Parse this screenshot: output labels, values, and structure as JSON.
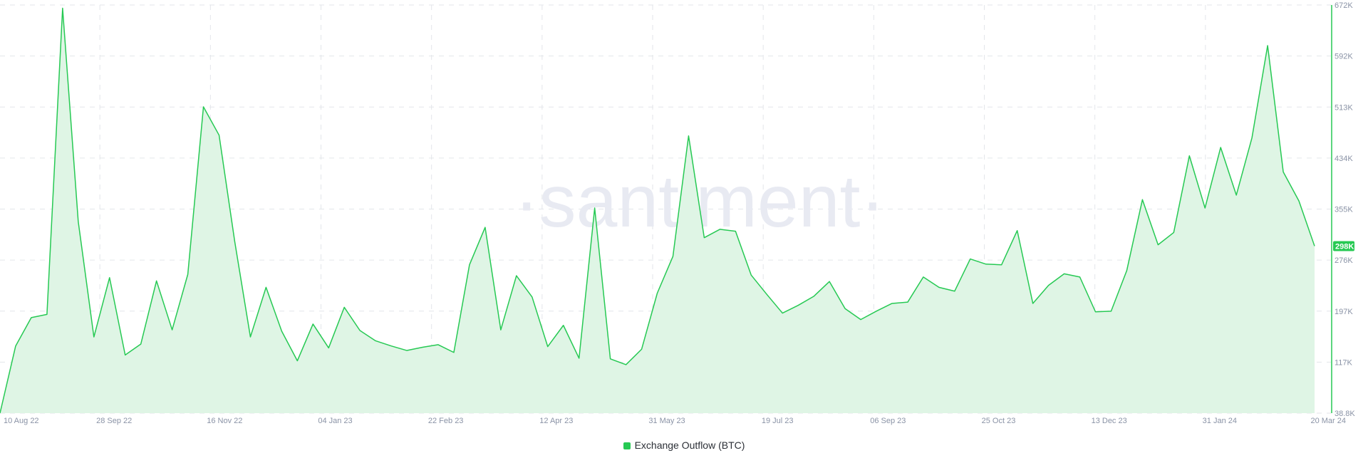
{
  "watermark": "·santiment·",
  "colors": {
    "line": "#26c953",
    "fill": "#dff5e5",
    "grid": "#e3e6ea",
    "axis": "#26c953",
    "badge": "#26c953",
    "watermark": "#e8eaf2"
  },
  "legend": {
    "label": "Exchange Outflow (BTC)"
  },
  "current_value_badge": "298K",
  "chart_data": {
    "type": "area",
    "title": "",
    "xlabel": "",
    "ylabel": "",
    "ylim": [
      38800,
      672000
    ],
    "y_ticks": [
      "38.8K",
      "117K",
      "197K",
      "276K",
      "355K",
      "434K",
      "513K",
      "592K",
      "672K"
    ],
    "x_ticks": [
      "10 Aug 22",
      "28 Sep 22",
      "16 Nov 22",
      "04 Jan 23",
      "22 Feb 23",
      "12 Apr 23",
      "31 May 23",
      "19 Jul 23",
      "06 Sep 23",
      "25 Oct 23",
      "13 Dec 23",
      "31 Jan 24",
      "20 Mar 24"
    ],
    "grid": true,
    "legend_position": "bottom-center",
    "series": [
      {
        "name": "Exchange Outflow (BTC)",
        "values": [
          38800,
          143000,
          187000,
          192000,
          667000,
          336000,
          157000,
          249000,
          129000,
          146000,
          244000,
          168000,
          254000,
          514000,
          470000,
          305000,
          157000,
          234000,
          166000,
          120000,
          177000,
          140000,
          203000,
          167000,
          151000,
          143000,
          136000,
          141000,
          145000,
          133000,
          269000,
          327000,
          168000,
          252000,
          219000,
          142000,
          175000,
          124000,
          357000,
          123000,
          114000,
          138000,
          225000,
          282000,
          469000,
          311000,
          324000,
          321000,
          253000,
          223000,
          194000,
          206000,
          220000,
          243000,
          201000,
          184000,
          197000,
          209000,
          211000,
          250000,
          234000,
          228000,
          278000,
          270000,
          269000,
          322000,
          209000,
          237000,
          255000,
          250000,
          196000,
          197000,
          260000,
          370000,
          300000,
          319000,
          438000,
          357000,
          451000,
          377000,
          466000,
          609000,
          413000,
          368000,
          298000
        ]
      }
    ]
  }
}
